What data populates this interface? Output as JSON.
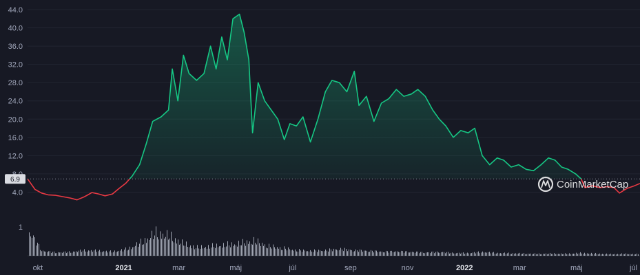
{
  "chart_data": {
    "type": "area",
    "title": "",
    "xlabel": "",
    "ylabel": "",
    "ylim": [
      0,
      44
    ],
    "y_ticks": [
      "4.0",
      "8.0",
      "12.0",
      "16.0",
      "20.0",
      "24.0",
      "28.0",
      "32.0",
      "36.0",
      "40.0",
      "44.0"
    ],
    "x_ticks": [
      {
        "label": "okt",
        "bold": false
      },
      {
        "label": "2021",
        "bold": true
      },
      {
        "label": "mar",
        "bold": false
      },
      {
        "label": "máj",
        "bold": false
      },
      {
        "label": "júl",
        "bold": false
      },
      {
        "label": "sep",
        "bold": false
      },
      {
        "label": "nov",
        "bold": false
      },
      {
        "label": "2022",
        "bold": true
      },
      {
        "label": "mar",
        "bold": false
      },
      {
        "label": "máj",
        "bold": false
      },
      {
        "label": "júl",
        "bold": false
      }
    ],
    "x_tick_dates": [
      "2020-10-01",
      "2021-01-01",
      "2021-03-01",
      "2021-05-01",
      "2021-07-01",
      "2021-09-01",
      "2021-11-01",
      "2022-01-01",
      "2022-03-01",
      "2022-05-01",
      "2022-07-01"
    ],
    "x_range": [
      "2020-09-20",
      "2022-07-08"
    ],
    "reference_value": 6.9,
    "reference_label": "6.9",
    "above_color": "#16c784",
    "below_color": "#ea3943",
    "grid": true,
    "price_series": {
      "name": "",
      "points": [
        [
          "2020-09-20",
          6.9
        ],
        [
          "2020-09-28",
          4.6
        ],
        [
          "2020-10-05",
          3.8
        ],
        [
          "2020-10-12",
          3.4
        ],
        [
          "2020-10-20",
          3.3
        ],
        [
          "2020-10-28",
          3.0
        ],
        [
          "2020-11-05",
          2.7
        ],
        [
          "2020-11-12",
          2.3
        ],
        [
          "2020-11-20",
          3.0
        ],
        [
          "2020-11-28",
          3.9
        ],
        [
          "2020-12-05",
          3.6
        ],
        [
          "2020-12-12",
          3.2
        ],
        [
          "2020-12-20",
          3.6
        ],
        [
          "2020-12-27",
          4.8
        ],
        [
          "2021-01-03",
          5.9
        ],
        [
          "2021-01-10",
          7.5
        ],
        [
          "2021-01-18",
          10.0
        ],
        [
          "2021-01-25",
          14.5
        ],
        [
          "2021-02-01",
          19.5
        ],
        [
          "2021-02-10",
          20.5
        ],
        [
          "2021-02-18",
          22.0
        ],
        [
          "2021-02-22",
          31.0
        ],
        [
          "2021-02-28",
          24.0
        ],
        [
          "2021-03-06",
          34.0
        ],
        [
          "2021-03-12",
          30.0
        ],
        [
          "2021-03-20",
          28.5
        ],
        [
          "2021-03-28",
          30.0
        ],
        [
          "2021-04-04",
          36.0
        ],
        [
          "2021-04-10",
          31.0
        ],
        [
          "2021-04-16",
          38.0
        ],
        [
          "2021-04-22",
          33.0
        ],
        [
          "2021-04-28",
          42.0
        ],
        [
          "2021-05-05",
          43.0
        ],
        [
          "2021-05-10",
          39.0
        ],
        [
          "2021-05-15",
          33.0
        ],
        [
          "2021-05-19",
          17.0
        ],
        [
          "2021-05-25",
          28.0
        ],
        [
          "2021-06-01",
          24.0
        ],
        [
          "2021-06-08",
          22.0
        ],
        [
          "2021-06-15",
          20.0
        ],
        [
          "2021-06-22",
          15.5
        ],
        [
          "2021-06-28",
          19.0
        ],
        [
          "2021-07-05",
          18.5
        ],
        [
          "2021-07-12",
          20.5
        ],
        [
          "2021-07-20",
          15.0
        ],
        [
          "2021-07-28",
          20.0
        ],
        [
          "2021-08-05",
          26.0
        ],
        [
          "2021-08-12",
          28.5
        ],
        [
          "2021-08-20",
          28.0
        ],
        [
          "2021-08-28",
          26.0
        ],
        [
          "2021-09-05",
          30.5
        ],
        [
          "2021-09-10",
          23.0
        ],
        [
          "2021-09-18",
          25.0
        ],
        [
          "2021-09-26",
          19.5
        ],
        [
          "2021-10-04",
          23.5
        ],
        [
          "2021-10-12",
          24.5
        ],
        [
          "2021-10-20",
          26.5
        ],
        [
          "2021-10-28",
          25.0
        ],
        [
          "2021-11-05",
          25.5
        ],
        [
          "2021-11-12",
          26.5
        ],
        [
          "2021-11-20",
          25.0
        ],
        [
          "2021-11-28",
          22.0
        ],
        [
          "2021-12-05",
          20.0
        ],
        [
          "2021-12-12",
          18.5
        ],
        [
          "2021-12-20",
          16.0
        ],
        [
          "2021-12-28",
          17.5
        ],
        [
          "2022-01-05",
          17.0
        ],
        [
          "2022-01-12",
          18.0
        ],
        [
          "2022-01-20",
          12.0
        ],
        [
          "2022-01-28",
          10.0
        ],
        [
          "2022-02-05",
          11.5
        ],
        [
          "2022-02-12",
          11.0
        ],
        [
          "2022-02-20",
          9.5
        ],
        [
          "2022-02-28",
          10.0
        ],
        [
          "2022-03-08",
          9.0
        ],
        [
          "2022-03-16",
          8.7
        ],
        [
          "2022-03-24",
          10.0
        ],
        [
          "2022-04-01",
          11.5
        ],
        [
          "2022-04-08",
          11.0
        ],
        [
          "2022-04-15",
          9.5
        ],
        [
          "2022-04-22",
          9.0
        ],
        [
          "2022-04-30",
          8.0
        ],
        [
          "2022-05-06",
          6.9
        ],
        [
          "2022-05-10",
          5.0
        ],
        [
          "2022-05-18",
          5.4
        ],
        [
          "2022-05-26",
          5.0
        ],
        [
          "2022-06-03",
          5.2
        ],
        [
          "2022-06-10",
          5.0
        ],
        [
          "2022-06-16",
          3.8
        ],
        [
          "2022-06-24",
          4.8
        ],
        [
          "2022-07-01",
          5.3
        ],
        [
          "2022-07-08",
          5.9
        ]
      ]
    },
    "volume_series": {
      "name": "",
      "max_label": "1",
      "points": [
        [
          "2020-09-20",
          1.0
        ],
        [
          "2020-10-05",
          0.18
        ],
        [
          "2020-10-20",
          0.12
        ],
        [
          "2020-11-05",
          0.14
        ],
        [
          "2020-11-20",
          0.2
        ],
        [
          "2020-12-05",
          0.18
        ],
        [
          "2020-12-20",
          0.15
        ],
        [
          "2021-01-05",
          0.25
        ],
        [
          "2021-01-20",
          0.5
        ],
        [
          "2021-02-05",
          0.85
        ],
        [
          "2021-02-20",
          0.7
        ],
        [
          "2021-03-05",
          0.45
        ],
        [
          "2021-03-20",
          0.3
        ],
        [
          "2021-04-05",
          0.35
        ],
        [
          "2021-04-20",
          0.4
        ],
        [
          "2021-05-05",
          0.45
        ],
        [
          "2021-05-20",
          0.55
        ],
        [
          "2021-06-05",
          0.35
        ],
        [
          "2021-06-20",
          0.28
        ],
        [
          "2021-07-05",
          0.2
        ],
        [
          "2021-07-20",
          0.18
        ],
        [
          "2021-08-05",
          0.2
        ],
        [
          "2021-08-20",
          0.25
        ],
        [
          "2021-09-05",
          0.2
        ],
        [
          "2021-09-20",
          0.18
        ],
        [
          "2021-10-05",
          0.15
        ],
        [
          "2021-10-20",
          0.16
        ],
        [
          "2021-11-05",
          0.14
        ],
        [
          "2021-11-20",
          0.12
        ],
        [
          "2021-12-05",
          0.14
        ],
        [
          "2021-12-20",
          0.1
        ],
        [
          "2022-01-05",
          0.1
        ],
        [
          "2022-01-20",
          0.14
        ],
        [
          "2022-02-05",
          0.1
        ],
        [
          "2022-02-20",
          0.09
        ],
        [
          "2022-03-05",
          0.08
        ],
        [
          "2022-03-20",
          0.07
        ],
        [
          "2022-04-05",
          0.08
        ],
        [
          "2022-04-20",
          0.07
        ],
        [
          "2022-05-05",
          0.1
        ],
        [
          "2022-05-20",
          0.08
        ],
        [
          "2022-06-05",
          0.06
        ],
        [
          "2022-06-20",
          0.07
        ],
        [
          "2022-07-08",
          0.06
        ]
      ]
    }
  },
  "watermark": {
    "text": "CoinMarketCap",
    "icon": "coinmarketcap-logo-icon"
  }
}
